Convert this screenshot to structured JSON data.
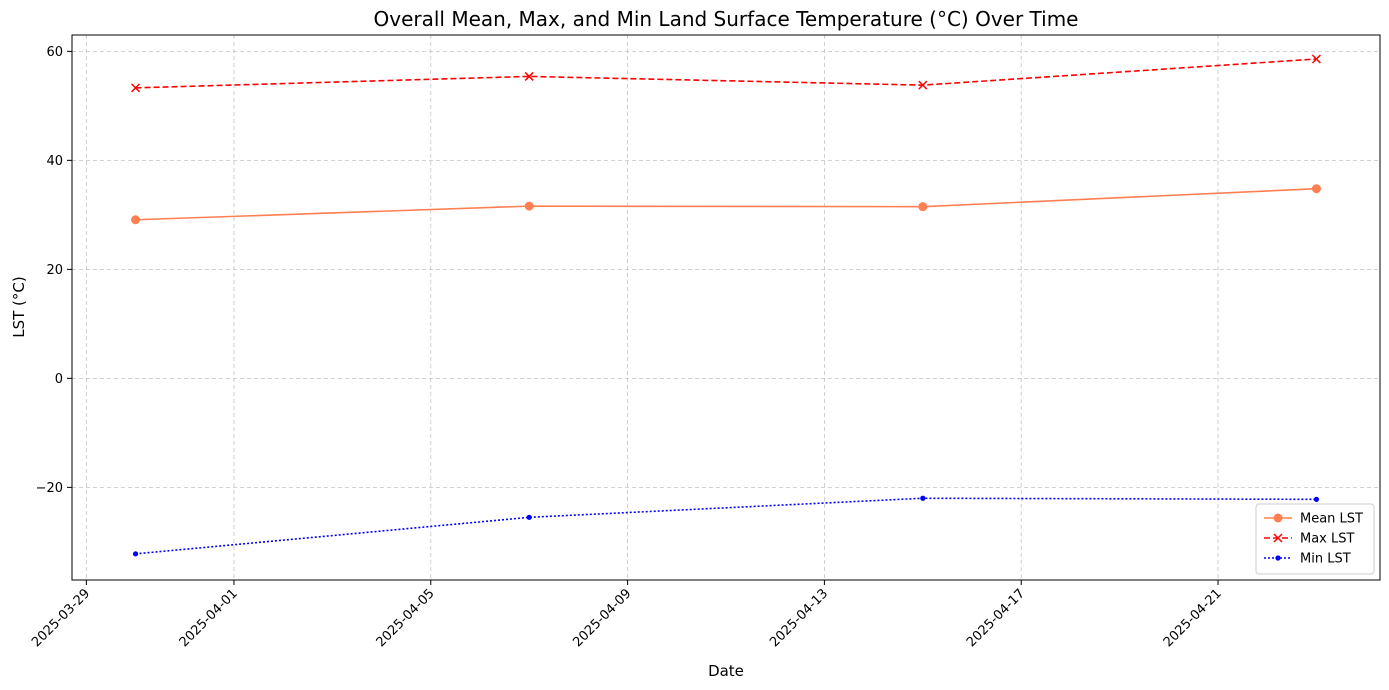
{
  "chart_data": {
    "type": "line",
    "title": "Overall Mean, Max, and Min Land Surface Temperature (°C) Over Time",
    "xlabel": "Date",
    "ylabel": "LST (°C)",
    "x": [
      "2025-03-30",
      "2025-04-07",
      "2025-04-15",
      "2025-04-23"
    ],
    "xlim": [
      "2025-03-28T17:00",
      "2025-04-24T07:00"
    ],
    "ylim": [
      -37,
      63
    ],
    "x_ticks": [
      "2025-03-29",
      "2025-04-01",
      "2025-04-05",
      "2025-04-09",
      "2025-04-13",
      "2025-04-17",
      "2025-04-21"
    ],
    "y_ticks": [
      -20,
      0,
      20,
      40,
      60
    ],
    "y_tick_labels": [
      "−20",
      "0",
      "20",
      "40",
      "60"
    ],
    "grid": true,
    "legend_position": "lower-right",
    "series": [
      {
        "name": "Mean LST",
        "values": [
          29.1,
          31.6,
          31.5,
          34.8
        ],
        "color": "#ff7f50",
        "line_style": "solid",
        "marker": "circle"
      },
      {
        "name": "Max LST",
        "values": [
          53.3,
          55.4,
          53.8,
          58.6
        ],
        "color": "#ff0000",
        "line_style": "dashed",
        "marker": "x"
      },
      {
        "name": "Min LST",
        "values": [
          -32.2,
          -25.5,
          -22.0,
          -22.2
        ],
        "color": "#0000ff",
        "line_style": "dotted",
        "marker": "point"
      }
    ]
  }
}
